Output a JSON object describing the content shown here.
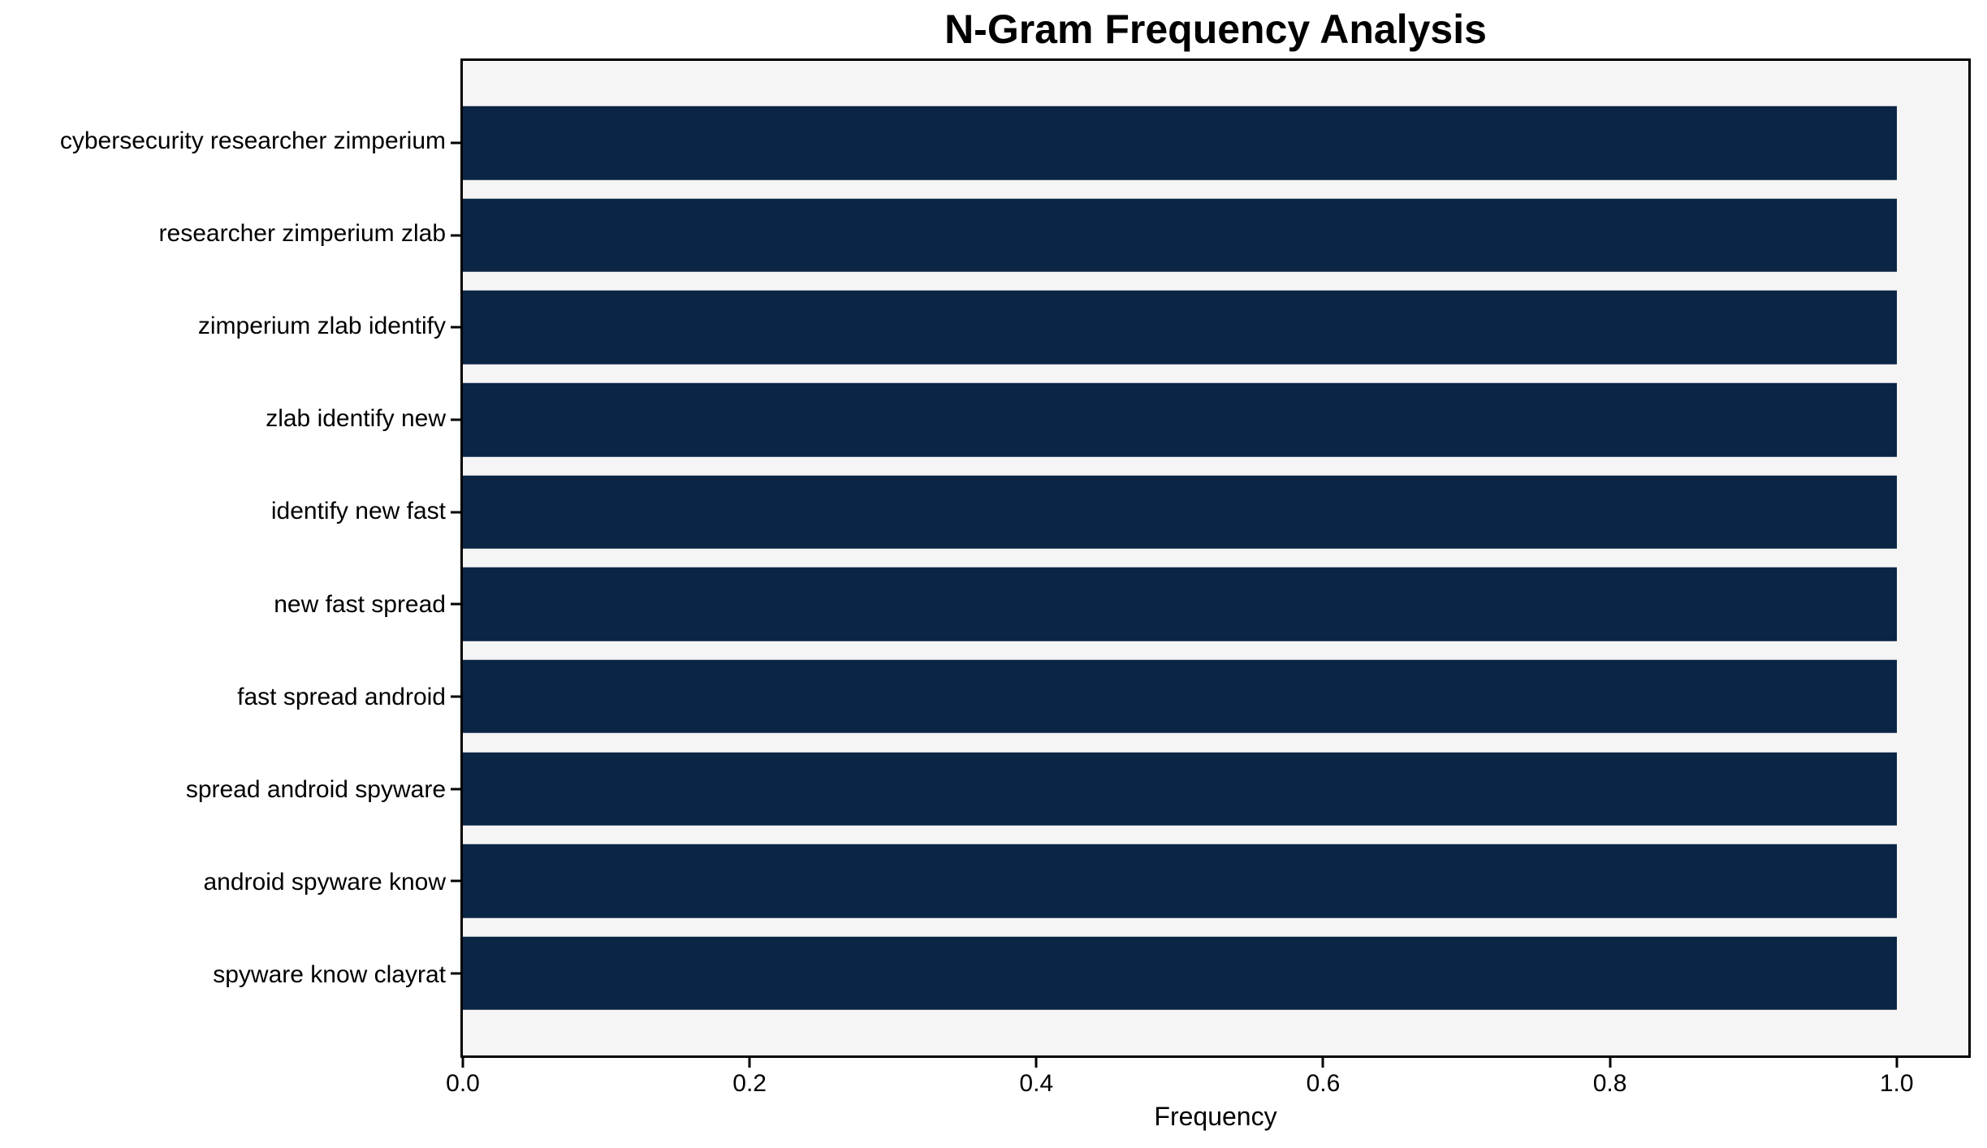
{
  "chart_data": {
    "type": "bar",
    "orientation": "horizontal",
    "title": "N-Gram Frequency Analysis",
    "xlabel": "Frequency",
    "ylabel": "",
    "categories": [
      "cybersecurity researcher zimperium",
      "researcher zimperium zlab",
      "zimperium zlab identify",
      "zlab identify new",
      "identify new fast",
      "new fast spread",
      "fast spread android",
      "spread android spyware",
      "android spyware know",
      "spyware know clayrat"
    ],
    "values": [
      1.0,
      1.0,
      1.0,
      1.0,
      1.0,
      1.0,
      1.0,
      1.0,
      1.0,
      1.0
    ],
    "xlim": [
      0,
      1.05
    ],
    "xticks": [
      0.0,
      0.2,
      0.4,
      0.6,
      0.8,
      1.0
    ],
    "xtick_labels": [
      "0.0",
      "0.2",
      "0.4",
      "0.6",
      "0.8",
      "1.0"
    ],
    "grid": false,
    "legend": null,
    "colors": {
      "bar": "#0b2545",
      "plot_background": "#f5f5f5",
      "figure_background": "#ffffff",
      "axis": "#000000",
      "text": "#000000"
    }
  }
}
